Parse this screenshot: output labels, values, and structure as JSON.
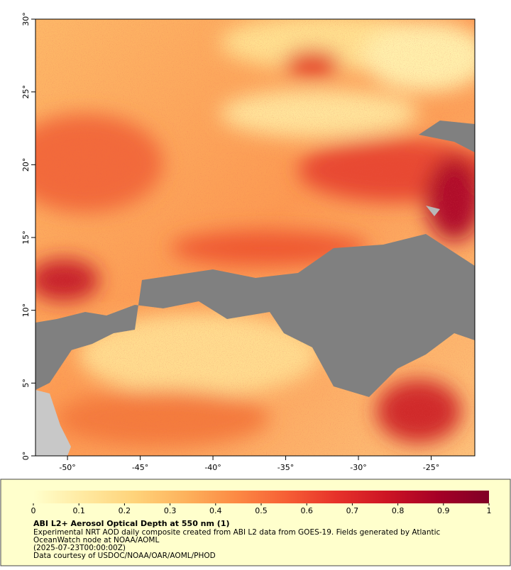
{
  "map": {
    "lonlim": [
      -52.2,
      -22
    ],
    "latlim": [
      0,
      30
    ],
    "xticks": [
      {
        "value": -50,
        "label": "-50°"
      },
      {
        "value": -45,
        "label": "-45°"
      },
      {
        "value": -40,
        "label": "-40°"
      },
      {
        "value": -35,
        "label": "-35°"
      },
      {
        "value": -30,
        "label": "-30°"
      },
      {
        "value": -25,
        "label": "-25°"
      }
    ],
    "yticks": [
      {
        "value": 0,
        "label": "0°"
      },
      {
        "value": 5,
        "label": "5°"
      },
      {
        "value": 10,
        "label": "10°"
      },
      {
        "value": 15,
        "label": "15°"
      },
      {
        "value": 20,
        "label": "20°"
      },
      {
        "value": 25,
        "label": "25°"
      },
      {
        "value": 30,
        "label": "30°"
      }
    ],
    "colorbar": {
      "lim": [
        0,
        1
      ],
      "ticks": [
        0,
        0.1,
        0.2,
        0.3,
        0.4,
        0.5,
        0.6,
        0.7,
        0.8,
        0.9,
        1
      ],
      "colormap": [
        "#ffffcc",
        "#ffe9a0",
        "#fed37a",
        "#fdb25c",
        "#fc8a44",
        "#f65f35",
        "#e6312a",
        "#cc1424",
        "#a50026",
        "#800026"
      ]
    },
    "title": "ABI L2+ Aerosol Optical Depth at 550 nm (1)",
    "description": [
      "Experimental NRT AOD daily composite created from ABI L2 data from GOES-19. Fields generated by Atlantic",
      "OceanWatch node at NOAA/AOML",
      "(2025-07-23T00:00:00Z)",
      "Data courtesy of USDOC/NOAA/OAR/AOML/PHOD"
    ]
  }
}
